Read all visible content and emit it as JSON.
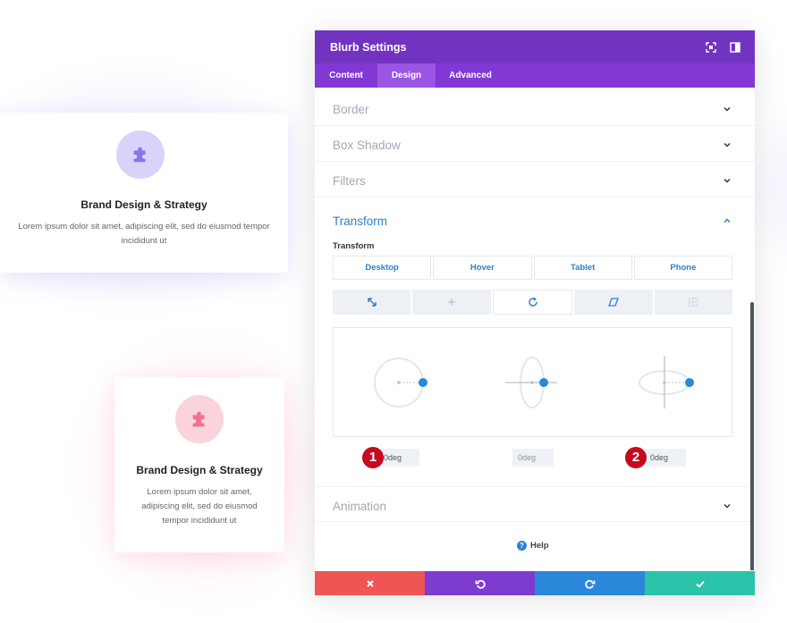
{
  "cards": [
    {
      "title": "Brand Design & Strategy",
      "text": "Lorem ipsum dolor sit amet, adipiscing elit, sed do eiusmod tempor incididunt ut",
      "icon": "puzzle-icon",
      "accent": "#8b73e8"
    },
    {
      "title": "Brand Design & Strategy",
      "text": "Lorem ipsum dolor sit amet, adipiscing elit, sed do eiusmod tempor incididunt ut",
      "icon": "puzzle-icon",
      "accent": "#f0708e"
    }
  ],
  "modal": {
    "title": "Blurb Settings",
    "tabs": [
      "Content",
      "Design",
      "Advanced"
    ],
    "active_tab": "Design",
    "sections": {
      "border": "Border",
      "box_shadow": "Box Shadow",
      "filters": "Filters",
      "transform": "Transform",
      "animation": "Animation"
    },
    "transform": {
      "sub_label": "Transform",
      "devices": [
        "Desktop",
        "Hover",
        "Tablet",
        "Phone"
      ],
      "tools": [
        "scale-icon",
        "translate-icon",
        "rotate-icon",
        "skew-icon",
        "origin-icon"
      ],
      "active_tool": "rotate-icon",
      "values": [
        "0deg",
        "0deg",
        "0deg"
      ],
      "badges": [
        "1",
        "2"
      ]
    },
    "help_label": "Help"
  },
  "colors": {
    "header": "#7233c1",
    "tabs": "#8138d4",
    "active_tab": "#9a55e2",
    "accent_blue": "#2f7fcc",
    "cancel": "#ef5555",
    "undo": "#7e3bd0",
    "redo": "#2b87da",
    "save": "#29c4a9",
    "badge": "#c8081e"
  }
}
